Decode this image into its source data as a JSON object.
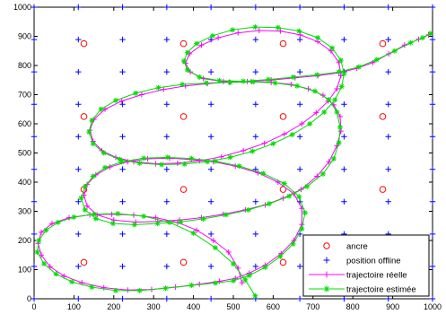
{
  "chart_data": {
    "type": "scatter",
    "xlim": [
      0,
      1000
    ],
    "ylim": [
      0,
      1000
    ],
    "xticks": [
      0,
      100,
      200,
      300,
      400,
      500,
      600,
      700,
      800,
      900,
      1000
    ],
    "yticks": [
      0,
      100,
      200,
      300,
      400,
      500,
      600,
      700,
      800,
      900,
      1000
    ],
    "grid": false,
    "legend_position": "bottom-right",
    "colors": {
      "ancre": "#ff0000",
      "position_offline": "#0000ff",
      "reelle": "#ff00ff",
      "estimee": "#00dd00"
    },
    "series": [
      {
        "name": "ancre",
        "marker": "circle",
        "points": [
          [
            125,
            125
          ],
          [
            375,
            125
          ],
          [
            625,
            125
          ],
          [
            875,
            125
          ],
          [
            125,
            375
          ],
          [
            375,
            375
          ],
          [
            625,
            375
          ],
          [
            875,
            375
          ],
          [
            125,
            625
          ],
          [
            375,
            625
          ],
          [
            625,
            625
          ],
          [
            875,
            625
          ],
          [
            125,
            875
          ],
          [
            375,
            875
          ],
          [
            625,
            875
          ],
          [
            875,
            875
          ]
        ]
      },
      {
        "name": "position offline",
        "marker": "plus",
        "x_values": [
          0,
          111,
          222,
          333,
          444,
          556,
          667,
          778,
          889,
          1000
        ],
        "y_values": [
          0,
          111,
          222,
          333,
          444,
          556,
          667,
          778,
          889,
          1000
        ]
      },
      {
        "name": "trajectoire réelle",
        "marker": "plus-line",
        "points": [
          [
            522,
            55
          ],
          [
            512,
            105
          ],
          [
            488,
            160
          ],
          [
            450,
            200
          ],
          [
            408,
            235
          ],
          [
            360,
            262
          ],
          [
            305,
            278
          ],
          [
            250,
            287
          ],
          [
            195,
            290
          ],
          [
            140,
            288
          ],
          [
            88,
            278
          ],
          [
            45,
            258
          ],
          [
            18,
            228
          ],
          [
            10,
            190
          ],
          [
            18,
            150
          ],
          [
            40,
            110
          ],
          [
            75,
            78
          ],
          [
            120,
            55
          ],
          [
            175,
            38
          ],
          [
            235,
            30
          ],
          [
            295,
            32
          ],
          [
            355,
            40
          ],
          [
            415,
            50
          ],
          [
            465,
            60
          ],
          [
            505,
            70
          ],
          [
            540,
            88
          ],
          [
            580,
            115
          ],
          [
            620,
            155
          ],
          [
            652,
            200
          ],
          [
            672,
            255
          ],
          [
            672,
            310
          ],
          [
            652,
            360
          ],
          [
            612,
            400
          ],
          [
            562,
            432
          ],
          [
            505,
            455
          ],
          [
            450,
            470
          ],
          [
            395,
            478
          ],
          [
            340,
            482
          ],
          [
            285,
            480
          ],
          [
            235,
            470
          ],
          [
            190,
            452
          ],
          [
            155,
            425
          ],
          [
            133,
            392
          ],
          [
            125,
            355
          ],
          [
            133,
            318
          ],
          [
            158,
            288
          ],
          [
            200,
            270
          ],
          [
            255,
            263
          ],
          [
            310,
            265
          ],
          [
            365,
            270
          ],
          [
            420,
            278
          ],
          [
            475,
            290
          ],
          [
            530,
            305
          ],
          [
            580,
            322
          ],
          [
            625,
            345
          ],
          [
            670,
            375
          ],
          [
            710,
            420
          ],
          [
            740,
            470
          ],
          [
            760,
            525
          ],
          [
            770,
            575
          ],
          [
            768,
            625
          ],
          [
            752,
            665
          ],
          [
            725,
            698
          ],
          [
            688,
            720
          ],
          [
            645,
            735
          ],
          [
            595,
            742
          ],
          [
            545,
            745
          ],
          [
            490,
            743
          ],
          [
            435,
            738
          ],
          [
            380,
            730
          ],
          [
            325,
            718
          ],
          [
            270,
            700
          ],
          [
            220,
            678
          ],
          [
            178,
            650
          ],
          [
            150,
            615
          ],
          [
            140,
            578
          ],
          [
            148,
            540
          ],
          [
            170,
            508
          ],
          [
            205,
            485
          ],
          [
            250,
            470
          ],
          [
            305,
            463
          ],
          [
            360,
            465
          ],
          [
            415,
            473
          ],
          [
            470,
            487
          ],
          [
            525,
            508
          ],
          [
            578,
            533
          ],
          [
            628,
            565
          ],
          [
            672,
            600
          ],
          [
            708,
            638
          ],
          [
            738,
            678
          ],
          [
            760,
            720
          ],
          [
            770,
            765
          ],
          [
            765,
            810
          ],
          [
            745,
            850
          ],
          [
            712,
            882
          ],
          [
            668,
            905
          ],
          [
            618,
            918
          ],
          [
            565,
            920
          ],
          [
            512,
            912
          ],
          [
            462,
            895
          ],
          [
            420,
            870
          ],
          [
            390,
            840
          ],
          [
            380,
            808
          ],
          [
            392,
            778
          ],
          [
            425,
            755
          ],
          [
            475,
            745
          ],
          [
            535,
            745
          ],
          [
            595,
            750
          ],
          [
            655,
            758
          ],
          [
            712,
            765
          ],
          [
            765,
            775
          ],
          [
            810,
            790
          ],
          [
            850,
            810
          ],
          [
            890,
            840
          ],
          [
            930,
            870
          ],
          [
            965,
            890
          ],
          [
            990,
            905
          ]
        ]
      },
      {
        "name": "trajectoire estimée",
        "marker": "star-line",
        "points": [
          [
            555,
            10
          ],
          [
            530,
            65
          ],
          [
            500,
            120
          ],
          [
            455,
            175
          ],
          [
            400,
            225
          ],
          [
            340,
            262
          ],
          [
            275,
            283
          ],
          [
            210,
            292
          ],
          [
            150,
            290
          ],
          [
            100,
            280
          ],
          [
            60,
            262
          ],
          [
            30,
            235
          ],
          [
            12,
            200
          ],
          [
            8,
            160
          ],
          [
            25,
            120
          ],
          [
            55,
            85
          ],
          [
            95,
            58
          ],
          [
            145,
            40
          ],
          [
            205,
            28
          ],
          [
            265,
            28
          ],
          [
            330,
            36
          ],
          [
            395,
            46
          ],
          [
            455,
            54
          ],
          [
            500,
            62
          ],
          [
            540,
            80
          ],
          [
            580,
            108
          ],
          [
            618,
            145
          ],
          [
            650,
            188
          ],
          [
            672,
            240
          ],
          [
            680,
            295
          ],
          [
            665,
            350
          ],
          [
            628,
            395
          ],
          [
            575,
            430
          ],
          [
            515,
            455
          ],
          [
            455,
            472
          ],
          [
            395,
            481
          ],
          [
            335,
            485
          ],
          [
            275,
            482
          ],
          [
            220,
            470
          ],
          [
            178,
            450
          ],
          [
            148,
            420
          ],
          [
            128,
            385
          ],
          [
            118,
            345
          ],
          [
            128,
            305
          ],
          [
            155,
            275
          ],
          [
            198,
            258
          ],
          [
            252,
            254
          ],
          [
            310,
            258
          ],
          [
            368,
            264
          ],
          [
            425,
            274
          ],
          [
            482,
            288
          ],
          [
            538,
            305
          ],
          [
            590,
            326
          ],
          [
            640,
            352
          ],
          [
            685,
            385
          ],
          [
            725,
            428
          ],
          [
            752,
            480
          ],
          [
            765,
            535
          ],
          [
            768,
            588
          ],
          [
            760,
            640
          ],
          [
            740,
            683
          ],
          [
            705,
            712
          ],
          [
            660,
            730
          ],
          [
            605,
            740
          ],
          [
            550,
            744
          ],
          [
            492,
            742
          ],
          [
            432,
            740
          ],
          [
            372,
            735
          ],
          [
            312,
            724
          ],
          [
            255,
            705
          ],
          [
            205,
            680
          ],
          [
            168,
            650
          ],
          [
            145,
            612
          ],
          [
            138,
            572
          ],
          [
            148,
            532
          ],
          [
            175,
            500
          ],
          [
            215,
            478
          ],
          [
            265,
            465
          ],
          [
            320,
            460
          ],
          [
            378,
            462
          ],
          [
            435,
            470
          ],
          [
            492,
            485
          ],
          [
            548,
            506
          ],
          [
            600,
            532
          ],
          [
            648,
            563
          ],
          [
            692,
            600
          ],
          [
            728,
            640
          ],
          [
            755,
            682
          ],
          [
            772,
            728
          ],
          [
            778,
            772
          ],
          [
            770,
            818
          ],
          [
            748,
            860
          ],
          [
            712,
            895
          ],
          [
            665,
            918
          ],
          [
            612,
            930
          ],
          [
            555,
            932
          ],
          [
            498,
            922
          ],
          [
            448,
            902
          ],
          [
            408,
            875
          ],
          [
            385,
            845
          ],
          [
            376,
            815
          ],
          [
            385,
            785
          ],
          [
            415,
            760
          ],
          [
            465,
            748
          ],
          [
            525,
            746
          ],
          [
            588,
            752
          ],
          [
            650,
            760
          ],
          [
            710,
            768
          ],
          [
            765,
            778
          ],
          [
            815,
            795
          ],
          [
            860,
            820
          ],
          [
            905,
            850
          ],
          [
            945,
            878
          ],
          [
            975,
            895
          ],
          [
            995,
            910
          ]
        ]
      }
    ]
  }
}
